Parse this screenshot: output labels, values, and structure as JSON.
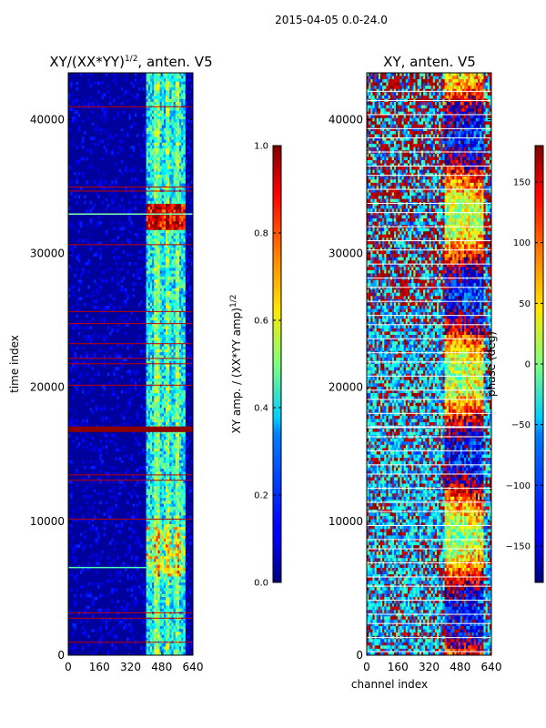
{
  "figure": {
    "suptitle": "2015-04-05 0.0-24.0"
  },
  "chart_data": [
    {
      "type": "heatmap",
      "title": "XY/(XX*YY)",
      "title_sup": "1/2",
      "title_suffix": ", anten. V5",
      "xlabel": "",
      "ylabel": "time index",
      "xlim": [
        0,
        640
      ],
      "ylim": [
        0,
        43500
      ],
      "xticks": [
        0,
        160,
        320,
        480,
        640
      ],
      "yticks": [
        0,
        10000,
        20000,
        30000,
        40000
      ],
      "xtick_labels": [
        "0",
        "160",
        "320",
        "480",
        "640"
      ],
      "ytick_labels": [
        "0",
        "10000",
        "20000",
        "30000",
        "40000"
      ],
      "colormap": "jet",
      "colorbar": {
        "label": "XY amp. / (XX*YY amp)",
        "label_sup": "1/2",
        "vmin": 0.0,
        "vmax": 1.0,
        "ticks": [
          0.0,
          0.2,
          0.4,
          0.6,
          0.8,
          1.0
        ],
        "tick_labels": [
          "0.0",
          "0.2",
          "0.4",
          "0.6",
          "0.8",
          "1.0"
        ]
      },
      "saturated_rows": [
        16800,
        16950
      ]
    },
    {
      "type": "heatmap",
      "title": "XY, anten. V5",
      "xlabel": "channel index",
      "ylabel": "",
      "xlim": [
        0,
        640
      ],
      "ylim": [
        0,
        43500
      ],
      "xticks": [
        0,
        160,
        320,
        480,
        640
      ],
      "yticks": [
        0,
        10000,
        20000,
        30000,
        40000
      ],
      "xtick_labels": [
        "0",
        "160",
        "320",
        "480",
        "640"
      ],
      "ytick_labels": [
        "0",
        "10000",
        "20000",
        "30000",
        "40000"
      ],
      "colormap": "jet",
      "colorbar": {
        "label": "phase (deg)",
        "vmin": -180,
        "vmax": 180,
        "ticks": [
          -150,
          -100,
          -50,
          0,
          50,
          100,
          150
        ],
        "tick_labels": [
          "−150",
          "−100",
          "−50",
          "0",
          "50",
          "100",
          "150"
        ]
      }
    }
  ]
}
